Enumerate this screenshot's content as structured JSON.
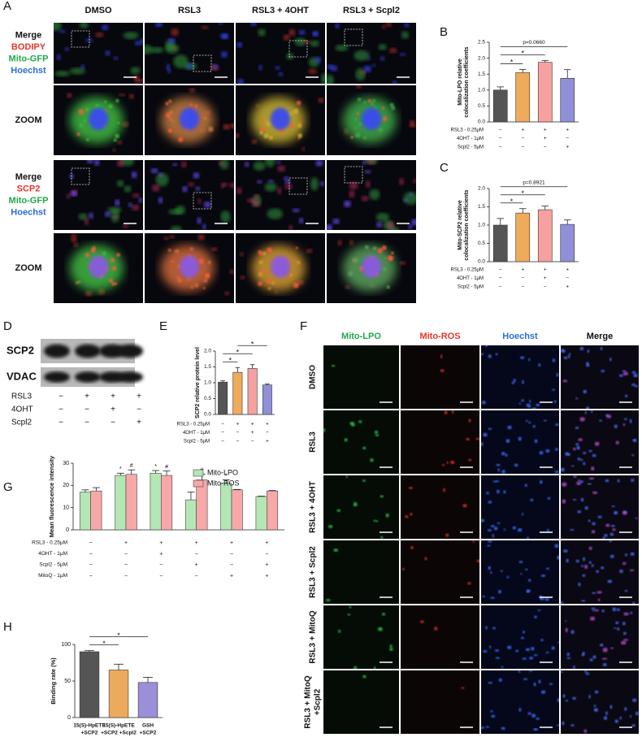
{
  "panel_labels": [
    "A",
    "B",
    "C",
    "D",
    "E",
    "F",
    "G",
    "H"
  ],
  "panel_a": {
    "columns": [
      "DMSO",
      "RSL3",
      "RSL3 + 4OHT",
      "RSL3 + Scpl2"
    ],
    "rows": [
      {
        "lines": [
          {
            "text": "Merge",
            "color": "#111111"
          },
          {
            "text": "BODIPY",
            "color": "#e8352b"
          },
          {
            "text": "Mito-GFP",
            "color": "#1fa84a"
          },
          {
            "text": "Hoechst",
            "color": "#2b6fd6"
          }
        ]
      },
      {
        "lines": [
          {
            "text": "ZOOM",
            "color": "#111111"
          }
        ]
      },
      {
        "lines": [
          {
            "text": "Merge",
            "color": "#111111"
          },
          {
            "text": "SCP2",
            "color": "#e8352b"
          },
          {
            "text": "Mito-GFP",
            "color": "#1fa84a"
          },
          {
            "text": "Hoechst",
            "color": "#2b6fd6"
          }
        ]
      },
      {
        "lines": [
          {
            "text": "ZOOM",
            "color": "#111111"
          }
        ]
      }
    ]
  },
  "panel_d": {
    "bands": [
      "SCP2",
      "VDAC"
    ],
    "conditions": [
      {
        "label": "RSL3",
        "signs": [
          "−",
          "+",
          "+",
          "+"
        ]
      },
      {
        "label": "4OHT",
        "signs": [
          "−",
          "−",
          "+",
          "−"
        ]
      },
      {
        "label": "Scpl2",
        "signs": [
          "−",
          "−",
          "−",
          "+"
        ]
      }
    ]
  },
  "panel_f": {
    "columns": [
      {
        "text": "Mito-LPO",
        "color": "#1fa84a"
      },
      {
        "text": "Mito-ROS",
        "color": "#e8352b"
      },
      {
        "text": "Hoechst",
        "color": "#2b6fd6"
      },
      {
        "text": "Merge",
        "color": "#111111"
      }
    ],
    "rows": [
      [
        "DMSO"
      ],
      [
        "RSL3"
      ],
      [
        "RSL3 + 4OHT"
      ],
      [
        "RSL3 + Scpl2"
      ],
      [
        "RSL3 + MitoQ"
      ],
      [
        "RSL3 + MitoQ",
        "+Scpl2"
      ]
    ]
  },
  "chart_data": [
    {
      "type": "bar",
      "ylabel": [
        "Mito-LPO relative",
        "colocalization coefficients"
      ],
      "categories": [
        null,
        null,
        null,
        null
      ],
      "values": [
        1.0,
        1.55,
        1.87,
        1.37
      ],
      "errors": [
        0.1,
        0.1,
        0.06,
        0.27
      ],
      "colors": [
        "#555555",
        "#f0aa5c",
        "#f6a0a0",
        "#9090d8"
      ],
      "ylim": [
        0,
        2.5
      ],
      "yticks": [
        {
          "value": 0,
          "label": "0.0"
        },
        0.5,
        {
          "value": 1,
          "label": "1.0"
        },
        1.5,
        {
          "value": 2,
          "label": "2.0"
        },
        2.5
      ],
      "significance": [
        {
          "text": "*",
          "groups": [
            0,
            1
          ]
        },
        {
          "text": "*",
          "groups": [
            0,
            2
          ]
        },
        {
          "text": "p=0.0660",
          "groups": [
            0,
            3
          ]
        }
      ],
      "conditions": [
        {
          "label": "RSL3 - 0.25μM",
          "signs": [
            "−",
            "+",
            "+",
            "+"
          ]
        },
        {
          "label": "4OHT - 1μM",
          "signs": [
            "−",
            "−",
            "+",
            "−"
          ]
        },
        {
          "label": "Scpl2 - 5μM",
          "signs": [
            "−",
            "−",
            "−",
            "+"
          ]
        }
      ]
    },
    {
      "type": "bar",
      "ylabel": [
        "Mito-SCP2 relative",
        "colocalization coefficients"
      ],
      "categories": [
        null,
        null,
        null,
        null
      ],
      "values": [
        1.0,
        1.33,
        1.42,
        1.02
      ],
      "errors": [
        0.18,
        0.12,
        0.1,
        0.12
      ],
      "colors": [
        "#555555",
        "#f0aa5c",
        "#f6a0a0",
        "#9090d8"
      ],
      "ylim": [
        0,
        2.0
      ],
      "yticks": [
        {
          "value": 0,
          "label": "0.0"
        },
        0.5,
        {
          "value": 1,
          "label": "1.0"
        },
        1.5,
        {
          "value": 2,
          "label": "2.0"
        }
      ],
      "significance": [
        {
          "text": "*",
          "groups": [
            0,
            1
          ]
        },
        {
          "text": "*",
          "groups": [
            0,
            2
          ]
        },
        {
          "text": "p=0.8921",
          "groups": [
            0,
            3
          ]
        }
      ],
      "conditions": [
        {
          "label": "RSL3 - 0.25μM",
          "signs": [
            "−",
            "+",
            "+",
            "+"
          ]
        },
        {
          "label": "4OHT - 1μM",
          "signs": [
            "−",
            "−",
            "+",
            "−"
          ]
        },
        {
          "label": "Scpl2 - 5μM",
          "signs": [
            "−",
            "−",
            "−",
            "+"
          ]
        }
      ]
    },
    {
      "type": "bar",
      "ylabel": [
        "SCP2 relative protein level"
      ],
      "categories": [
        null,
        null,
        null,
        null
      ],
      "values": [
        1.02,
        1.33,
        1.45,
        0.93
      ],
      "errors": [
        0.04,
        0.15,
        0.12,
        0.03
      ],
      "colors": [
        "#555555",
        "#f0aa5c",
        "#f6a0a0",
        "#9090d8"
      ],
      "ylim": [
        0,
        2.0
      ],
      "yticks": [
        {
          "value": 0,
          "label": "0.0"
        },
        0.5,
        {
          "value": 1,
          "label": "1.0"
        },
        1.5,
        {
          "value": 2,
          "label": "2.0"
        }
      ],
      "significance": [
        {
          "text": "*",
          "groups": [
            0,
            1
          ]
        },
        {
          "text": "*",
          "groups": [
            0,
            2
          ]
        },
        {
          "text": "*",
          "groups": [
            1,
            3
          ]
        }
      ],
      "conditions": [
        {
          "label": "RSL3 - 0.25μM",
          "signs": [
            "−",
            "+",
            "+",
            "+"
          ]
        },
        {
          "label": "4OHT - 1μM",
          "signs": [
            "−",
            "−",
            "+",
            "−"
          ]
        },
        {
          "label": "Scpl2 - 5μM",
          "signs": [
            "−",
            "−",
            "−",
            "+"
          ]
        }
      ]
    },
    {
      "type": "grouped_bar",
      "ylabel": [
        "Mean fluorescence intensity"
      ],
      "categories": [
        null,
        null,
        null,
        null,
        null,
        null
      ],
      "series": [
        {
          "name": "Mito-LPO",
          "color": "#b5e6b5",
          "values": [
            17,
            24.5,
            25.5,
            13.5,
            21,
            15
          ],
          "errors": [
            1,
            1,
            1.2,
            3.5,
            1.5,
            0.2
          ]
        },
        {
          "name": "Mito-ROS",
          "color": "#f7a8a8",
          "values": [
            17.5,
            25,
            24.5,
            22.5,
            18,
            17.5
          ],
          "errors": [
            1.5,
            2,
            2,
            2.5,
            0.2,
            0.2
          ]
        }
      ],
      "ylim": [
        0,
        30
      ],
      "yticks": [
        0,
        10,
        20,
        30
      ],
      "legend": "upper right",
      "markers": [
        {
          "text": "*",
          "series": 0,
          "index": 1
        },
        {
          "text": "*",
          "series": 0,
          "index": 2
        },
        {
          "text": "*",
          "series": 0,
          "index": 4
        },
        {
          "text": "#",
          "series": 1,
          "index": 1
        },
        {
          "text": "#",
          "series": 1,
          "index": 2
        },
        {
          "text": "#",
          "series": 1,
          "index": 3
        }
      ],
      "conditions": [
        {
          "label": "RSL3 - 0.25μM",
          "signs": [
            "−",
            "+",
            "+",
            "+",
            "+",
            "+"
          ]
        },
        {
          "label": "4OHT - 1μM",
          "signs": [
            "−",
            "−",
            "+",
            "−",
            "−",
            "−"
          ]
        },
        {
          "label": "Scpl2 - 5μM",
          "signs": [
            "−",
            "−",
            "−",
            "+",
            "−",
            "+"
          ]
        },
        {
          "label": "MitoQ - 1μM",
          "signs": [
            "−",
            "−",
            "−",
            "−",
            "+",
            "+"
          ]
        }
      ]
    },
    {
      "type": "bar",
      "ylabel": [
        "Binding rate (%)"
      ],
      "categories": [
        [
          "15(S)-HpETE",
          "+SCP2"
        ],
        [
          "15(S)-HpETE",
          "+SCP2 +Scpl2"
        ],
        [
          "GSH",
          "+SCP2"
        ]
      ],
      "values": [
        90,
        65,
        48
      ],
      "errors": [
        1.5,
        8,
        7
      ],
      "colors": [
        "#555555",
        "#eeaa5c",
        "#9a8fd8"
      ],
      "ylim": [
        0,
        100
      ],
      "yticks": [
        0,
        50,
        100
      ],
      "significance": [
        {
          "text": "*",
          "groups": [
            0,
            1
          ]
        },
        {
          "text": "*",
          "groups": [
            0,
            2
          ]
        }
      ]
    }
  ]
}
